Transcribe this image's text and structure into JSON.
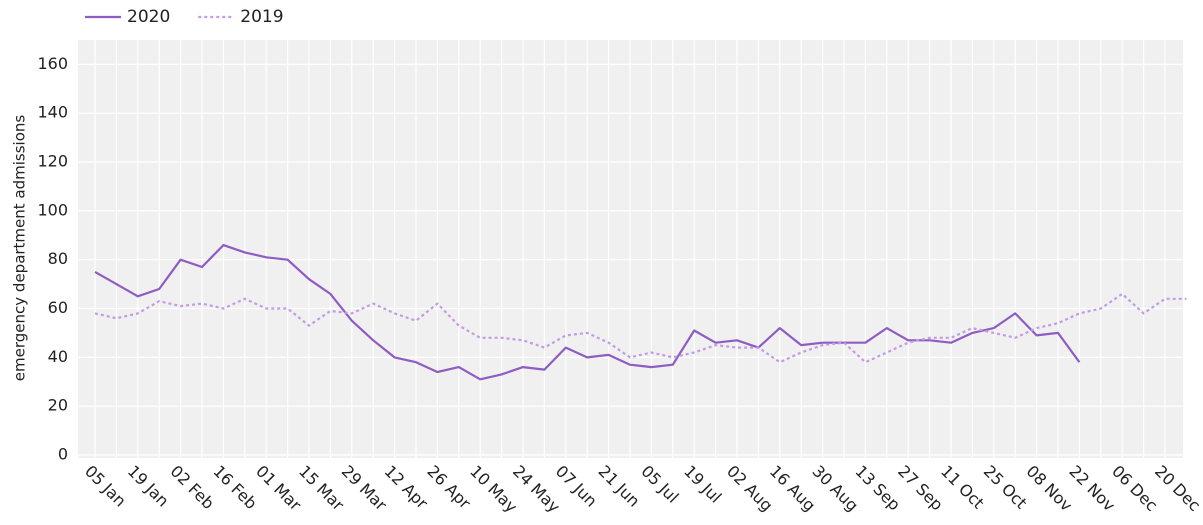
{
  "chart_data": {
    "type": "line",
    "y_label": "emergency department admissions",
    "categories": [
      "05 Jan",
      null,
      "19 Jan",
      null,
      "02 Feb",
      null,
      "16 Feb",
      null,
      "01 Mar",
      null,
      "15 Mar",
      null,
      "29 Mar",
      null,
      "12 Apr",
      null,
      "26 Apr",
      null,
      "10 May",
      null,
      "24 May",
      null,
      "07 Jun",
      null,
      "21 Jun",
      null,
      "05 Jul",
      null,
      "19 Jul",
      null,
      "02 Aug",
      null,
      "16 Aug",
      null,
      "30 Aug",
      null,
      "13 Sep",
      null,
      "27 Sep",
      null,
      "11 Oct",
      null,
      "25 Oct",
      null,
      "08 Nov",
      null,
      "22 Nov",
      null,
      "06 Dec",
      null,
      "20 Dec",
      null
    ],
    "series": [
      {
        "name": "2020",
        "color": "#8e5cc2",
        "dash": false,
        "values": [
          75,
          70,
          65,
          68,
          80,
          77,
          86,
          83,
          81,
          80,
          72,
          66,
          55,
          47,
          40,
          38,
          34,
          36,
          31,
          33,
          36,
          35,
          44,
          40,
          41,
          37,
          36,
          37,
          51,
          46,
          47,
          44,
          52,
          45,
          46,
          46,
          46,
          52,
          47,
          47,
          46,
          50,
          52,
          58,
          49,
          50,
          38,
          null,
          null,
          null,
          null,
          null
        ]
      },
      {
        "name": "2019",
        "color": "#c39be3",
        "dash": true,
        "values": [
          58,
          56,
          58,
          63,
          61,
          62,
          60,
          64,
          60,
          60,
          53,
          59,
          58,
          62,
          58,
          55,
          62,
          53,
          48,
          48,
          47,
          44,
          49,
          50,
          46,
          40,
          42,
          40,
          42,
          45,
          44,
          44,
          38,
          42,
          45,
          46,
          38,
          42,
          46,
          48,
          48,
          52,
          50,
          48,
          52,
          54,
          58,
          60,
          66,
          58,
          64,
          64
        ]
      }
    ],
    "ylim": [
      0,
      170
    ],
    "yticks": [
      0,
      20,
      40,
      60,
      80,
      100,
      120,
      140,
      160
    ],
    "grid": true,
    "legend": "top-left"
  }
}
